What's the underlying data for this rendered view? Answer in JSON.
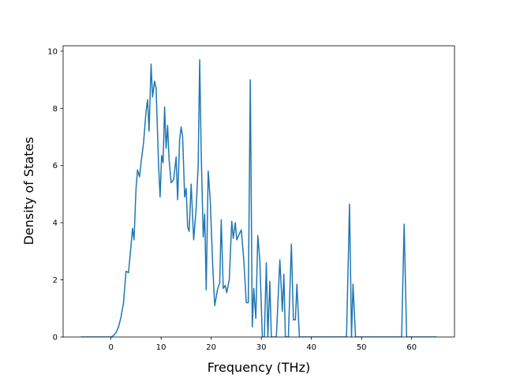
{
  "chart_data": {
    "type": "line",
    "xlabel": "Frequency (THz)",
    "ylabel": "Density of States",
    "color": "#1f77b4",
    "xlim": [
      -9.55,
      68.55
    ],
    "ylim": [
      0,
      10.19
    ],
    "xticks": [
      0,
      10,
      20,
      30,
      40,
      50,
      60
    ],
    "yticks": [
      0,
      2,
      4,
      6,
      8,
      10
    ],
    "x": [
      -6,
      0,
      0.5,
      1,
      1.5,
      2,
      2.5,
      3,
      3.5,
      4,
      4.3,
      4.6,
      5,
      5.3,
      5.7,
      6,
      6.5,
      7,
      7.3,
      7.6,
      8,
      8.3,
      8.7,
      9,
      9.5,
      9.8,
      10.1,
      10.4,
      10.7,
      11,
      11.3,
      11.6,
      12,
      12.5,
      13,
      13.3,
      13.7,
      14,
      14.3,
      14.7,
      15,
      15.3,
      15.6,
      16,
      16.5,
      17,
      17.4,
      17.7,
      18,
      18.4,
      18.7,
      19,
      19.4,
      19.8,
      20.3,
      20.7,
      21.3,
      21.7,
      22,
      22.4,
      22.8,
      23.1,
      23.6,
      24.1,
      24.4,
      24.8,
      25.1,
      25.6,
      26,
      26.5,
      27,
      27.4,
      27.8,
      28.2,
      28.5,
      28.9,
      29.3,
      29.7,
      30.2,
      30.6,
      31,
      31.3,
      31.7,
      32,
      33,
      33.7,
      34.2,
      34.5,
      34.8,
      35.4,
      36,
      36.4,
      36.8,
      37.1,
      37.6,
      47,
      47.6,
      48,
      48.3,
      48.8,
      58,
      58.5,
      59,
      65
    ],
    "values": [
      0,
      0,
      0.05,
      0.15,
      0.35,
      0.7,
      1.2,
      2.3,
      2.25,
      3.2,
      3.8,
      3.4,
      5.2,
      5.85,
      5.6,
      6.1,
      6.8,
      7.9,
      8.3,
      7.2,
      9.55,
      8.4,
      8.95,
      8.7,
      6.0,
      4.9,
      6.35,
      6.1,
      8.05,
      6.6,
      7.4,
      6.2,
      5.4,
      5.5,
      6.3,
      4.8,
      6.9,
      7.35,
      7.0,
      4.9,
      5.2,
      3.85,
      3.7,
      5.35,
      3.4,
      4.5,
      6.0,
      9.7,
      6.5,
      3.5,
      4.3,
      1.65,
      5.8,
      4.8,
      2.5,
      1.1,
      1.7,
      1.9,
      4.1,
      1.7,
      1.8,
      1.55,
      2.0,
      4.05,
      3.45,
      4.0,
      3.4,
      3.6,
      3.75,
      2.7,
      1.2,
      1.2,
      9.0,
      0.35,
      1.7,
      0.65,
      3.55,
      2.7,
      0,
      0,
      2.6,
      0,
      1.95,
      0,
      0,
      2.7,
      0.9,
      2.2,
      0,
      0,
      3.25,
      0.6,
      0.6,
      1.85,
      0,
      0,
      4.65,
      0,
      1.85,
      0,
      0,
      3.95,
      0,
      0
    ]
  }
}
